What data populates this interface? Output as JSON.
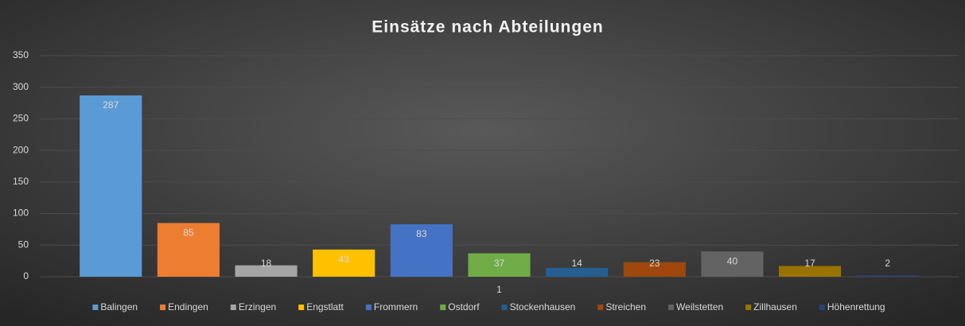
{
  "chart_data": {
    "type": "bar",
    "title": "Einsätze nach Abteilungen",
    "categories": [
      "1"
    ],
    "series": [
      {
        "name": "Balingen",
        "color": "#5b9bd5",
        "values": [
          287
        ]
      },
      {
        "name": "Endingen",
        "color": "#ed7d31",
        "values": [
          85
        ]
      },
      {
        "name": "Erzingen",
        "color": "#a5a5a5",
        "values": [
          18
        ]
      },
      {
        "name": "Engstlatt",
        "color": "#ffc000",
        "values": [
          43
        ]
      },
      {
        "name": "Frommern",
        "color": "#4472c4",
        "values": [
          83
        ]
      },
      {
        "name": "Ostdorf",
        "color": "#70ad47",
        "values": [
          37
        ]
      },
      {
        "name": "Stockenhausen",
        "color": "#255e91",
        "values": [
          14
        ]
      },
      {
        "name": "Streichen",
        "color": "#9e480e",
        "values": [
          23
        ]
      },
      {
        "name": "Weilstetten",
        "color": "#636363",
        "values": [
          40
        ]
      },
      {
        "name": "Zillhausen",
        "color": "#997300",
        "values": [
          17
        ]
      },
      {
        "name": "Höhenrettung",
        "color": "#264478",
        "values": [
          2
        ]
      }
    ],
    "ylim": [
      0,
      350
    ],
    "yticks": [
      0,
      50,
      100,
      150,
      200,
      250,
      300,
      350
    ],
    "grid": true,
    "legend": "bottom"
  }
}
